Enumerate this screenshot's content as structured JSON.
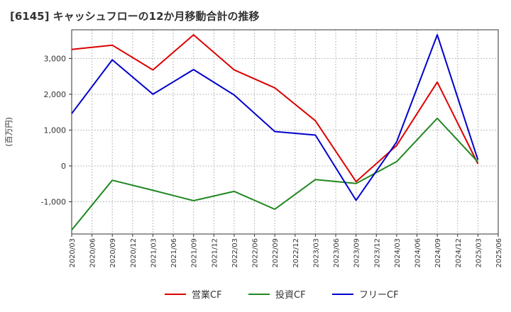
{
  "chart_data": {
    "type": "line",
    "title": "[6145]  キャッシュフローの12か月移動合計の推移",
    "ylabel": "(百万円)",
    "xlabel": "",
    "ylim": [
      -1900,
      3800
    ],
    "yticks": [
      -1000,
      0,
      1000,
      2000,
      3000
    ],
    "ytick_labels": [
      "-1,000",
      "0",
      "1,000",
      "2,000",
      "3,000"
    ],
    "x": [
      "2020/03",
      "2020/06",
      "2020/09",
      "2020/12",
      "2021/03",
      "2021/06",
      "2021/09",
      "2021/12",
      "2022/03",
      "2022/06",
      "2022/09",
      "2022/12",
      "2023/03",
      "2023/06",
      "2023/09",
      "2023/12",
      "2024/03",
      "2024/06",
      "2024/09",
      "2024/12",
      "2025/03",
      "2025/06"
    ],
    "series": [
      {
        "name": "営業CF",
        "color": "#dd0000",
        "values": [
          3250,
          null,
          3370,
          null,
          2680,
          null,
          3660,
          null,
          2680,
          null,
          2180,
          null,
          1260,
          null,
          -440,
          null,
          570,
          null,
          2340,
          null,
          60,
          null
        ]
      },
      {
        "name": "投資CF",
        "color": "#228822",
        "values": [
          -1790,
          null,
          -400,
          null,
          -680,
          null,
          -970,
          null,
          -710,
          null,
          -1210,
          null,
          -380,
          null,
          -490,
          null,
          120,
          null,
          1330,
          null,
          110,
          null
        ]
      },
      {
        "name": "フリーCF",
        "color": "#0000cc",
        "values": [
          1460,
          null,
          2960,
          null,
          2000,
          null,
          2690,
          null,
          1980,
          null,
          960,
          null,
          860,
          null,
          -960,
          null,
          670,
          null,
          3660,
          null,
          170,
          null
        ]
      }
    ],
    "grid": true,
    "legend_position": "bottom-center"
  }
}
